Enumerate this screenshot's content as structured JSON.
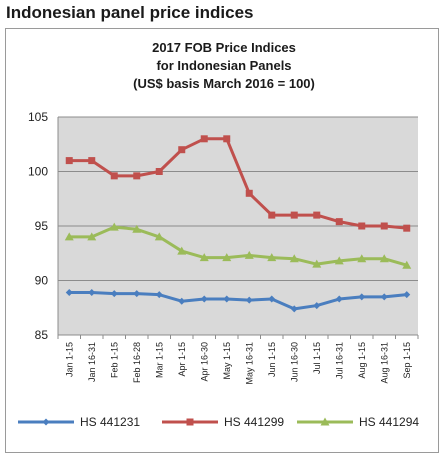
{
  "heading": "Indonesian panel price indices",
  "chart_data": {
    "type": "line",
    "title": [
      "2017 FOB Price Indices",
      "for Indonesian Panels",
      "(US$ basis March 2016 = 100)"
    ],
    "xlabel": "",
    "ylabel": "",
    "ylim": [
      85,
      105
    ],
    "yticks": [
      85,
      90,
      95,
      100,
      105
    ],
    "grid": "horizontal",
    "legend_position": "bottom",
    "categories": [
      "Jan 1-15",
      "Jan 16-31",
      "Feb 1-15",
      "Feb 16-28",
      "Mar 1-15",
      "Apr 1-15",
      "Apr 16-30",
      "May 1-15",
      "May 16-31",
      "Jun 1-15",
      "Jun 16-30",
      "Jul 1-15",
      "Jul 16-31",
      "Aug 1-15",
      "Aug 16-31",
      "Sep 1-15"
    ],
    "series": [
      {
        "name": "HS 441231",
        "color": "#4a7ebf",
        "marker": "diamond",
        "values": [
          88.9,
          88.9,
          88.8,
          88.8,
          88.7,
          88.1,
          88.3,
          88.3,
          88.2,
          88.3,
          87.4,
          87.7,
          88.3,
          88.5,
          88.5,
          88.7
        ]
      },
      {
        "name": "HS 441299",
        "color": "#c0504d",
        "marker": "square",
        "values": [
          101.0,
          101.0,
          99.6,
          99.6,
          100.0,
          102.0,
          103.0,
          103.0,
          98.0,
          96.0,
          96.0,
          96.0,
          95.4,
          95.0,
          95.0,
          94.8
        ]
      },
      {
        "name": "HS 441294",
        "color": "#9bbb59",
        "marker": "triangle",
        "values": [
          94.0,
          94.0,
          94.9,
          94.7,
          94.0,
          92.7,
          92.1,
          92.1,
          92.3,
          92.1,
          92.0,
          91.5,
          91.8,
          92.0,
          92.0,
          91.4
        ]
      }
    ]
  }
}
